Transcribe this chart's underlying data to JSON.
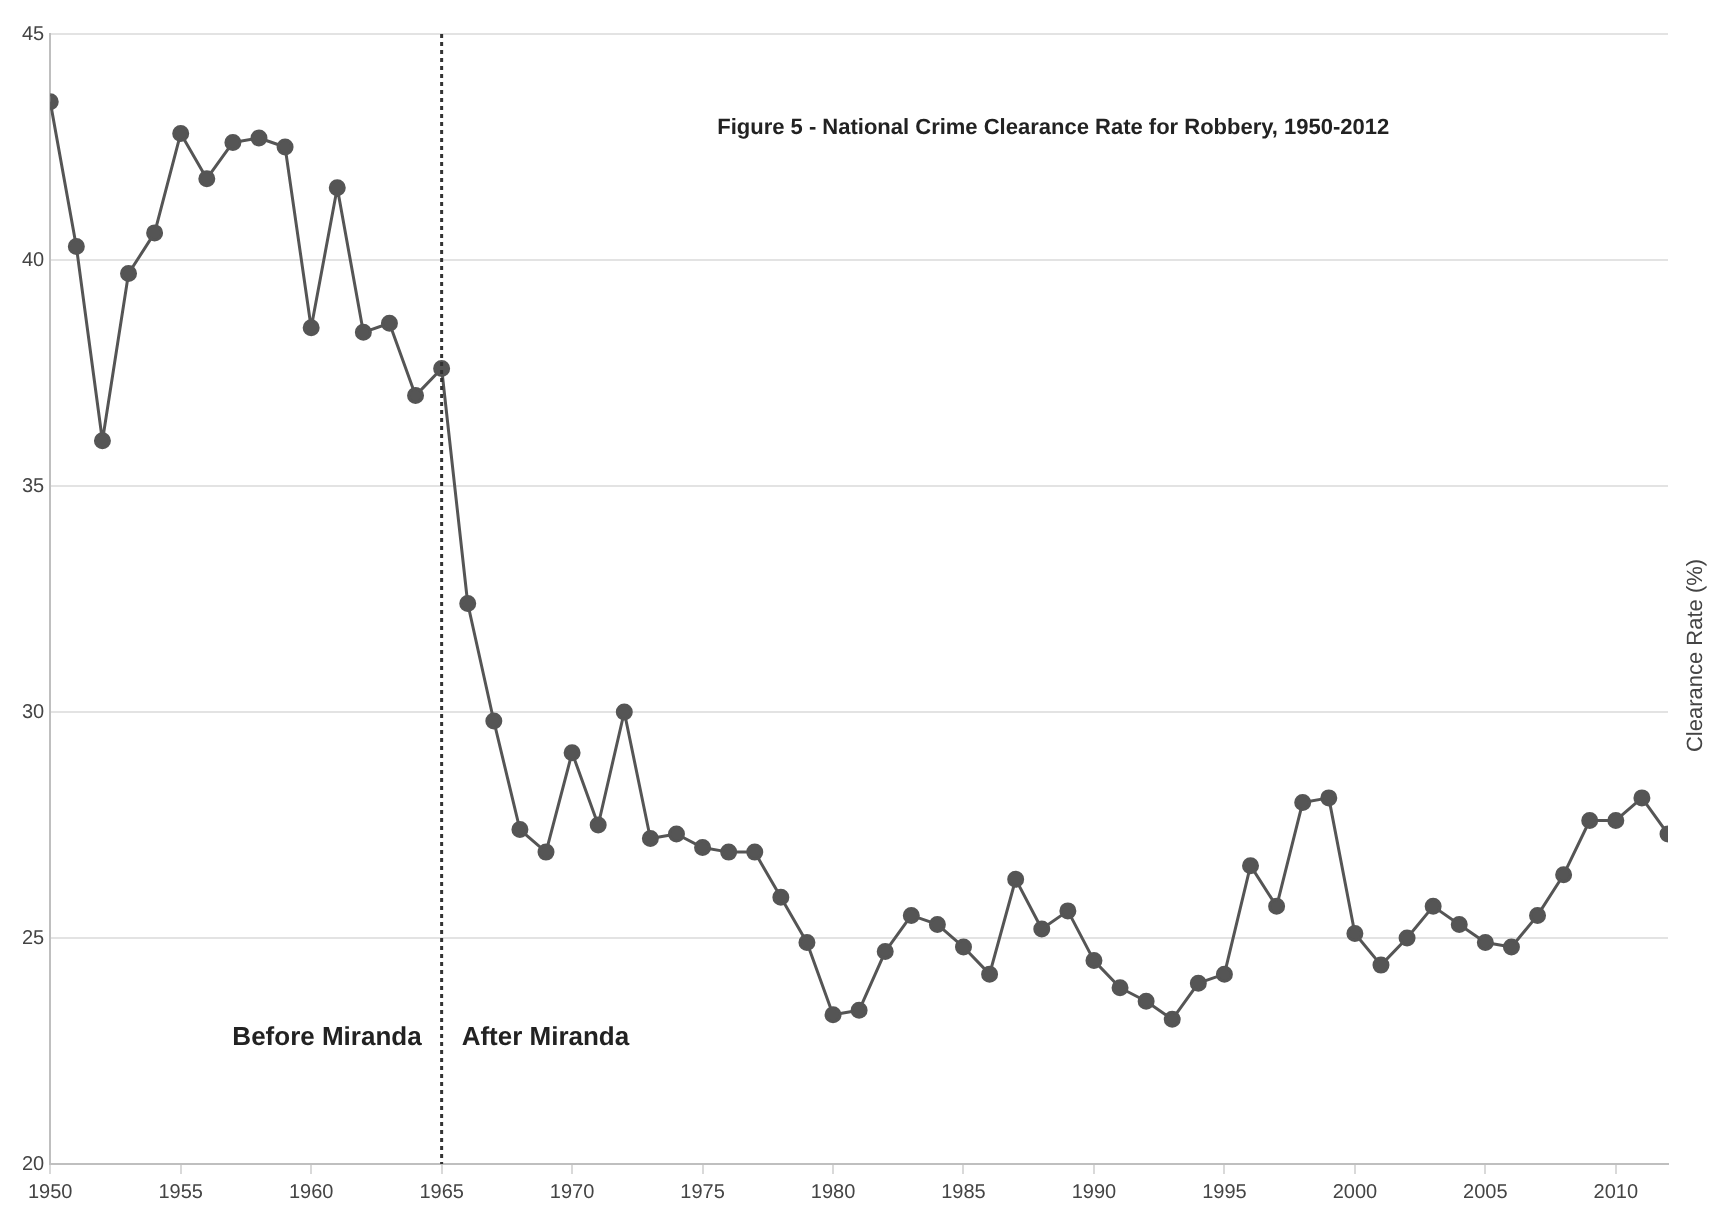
{
  "chart_data": {
    "type": "line",
    "title": "Figure 5 - National Crime Clearance Rate for Robbery, 1950-2012",
    "ylabel": "Clearance Rate (%)",
    "x": [
      1950,
      1951,
      1952,
      1953,
      1954,
      1955,
      1956,
      1957,
      1958,
      1959,
      1960,
      1961,
      1962,
      1963,
      1964,
      1965,
      1966,
      1967,
      1968,
      1969,
      1970,
      1971,
      1972,
      1973,
      1974,
      1975,
      1976,
      1977,
      1978,
      1979,
      1980,
      1981,
      1982,
      1983,
      1984,
      1985,
      1986,
      1987,
      1988,
      1989,
      1990,
      1991,
      1992,
      1993,
      1994,
      1995,
      1996,
      1997,
      1998,
      1999,
      2000,
      2001,
      2002,
      2003,
      2004,
      2005,
      2006,
      2007,
      2008,
      2009,
      2010,
      2011,
      2012
    ],
    "series": [
      {
        "color": "#555555",
        "values": [
          43.5,
          40.3,
          36.0,
          39.7,
          40.6,
          42.8,
          41.8,
          42.6,
          42.7,
          42.5,
          38.5,
          41.6,
          38.4,
          38.6,
          37.0,
          37.6,
          32.4,
          29.8,
          27.4,
          26.9,
          29.1,
          27.5,
          30.0,
          27.2,
          27.3,
          27.0,
          26.9,
          26.9,
          25.9,
          24.9,
          23.3,
          23.4,
          24.7,
          25.5,
          25.3,
          24.8,
          24.2,
          26.3,
          25.2,
          25.6,
          24.5,
          23.9,
          23.6,
          23.2,
          24.0,
          24.2,
          26.6,
          25.7,
          28.0,
          28.1,
          25.1,
          24.4,
          25.0,
          25.7,
          25.3,
          24.9,
          24.8,
          25.5,
          26.4,
          27.6,
          27.6,
          28.1,
          27.3
        ]
      }
    ],
    "xlim": [
      1950,
      2012
    ],
    "xticks": [
      1950,
      1955,
      1960,
      1965,
      1970,
      1975,
      1980,
      1985,
      1990,
      1995,
      2000,
      2005,
      2010
    ],
    "ylim": [
      20,
      45
    ],
    "yticks": [
      20,
      25,
      30,
      35,
      40,
      45
    ],
    "ref_lines": [
      {
        "axis": "x",
        "value": 1965,
        "color": "#333333",
        "line_style": "dotted"
      }
    ],
    "annotations": [
      "Before Miranda",
      "After Miranda"
    ],
    "grid": "y",
    "marker": "circle",
    "line_style": "solid",
    "legend": false
  }
}
